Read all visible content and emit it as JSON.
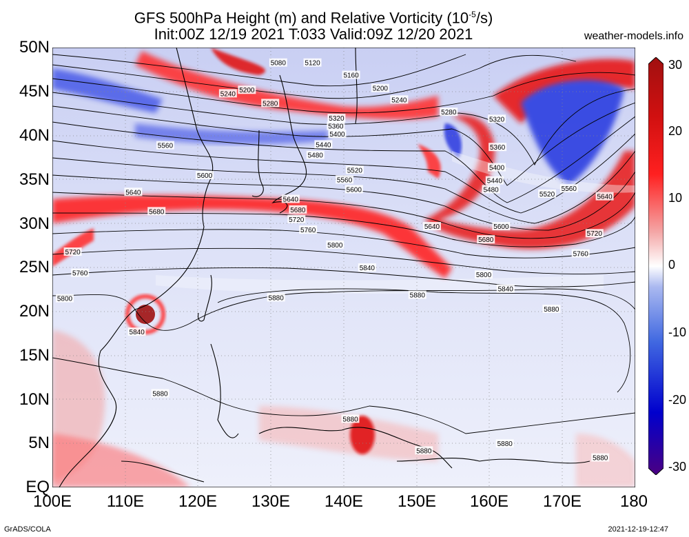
{
  "title_line1": "GFS 500hPa Height (m) and Relative Vorticity (10",
  "title_sup": "-5",
  "title_line1_end": "/s)",
  "title_line2": "Init:00Z 12/19 2021 T:033 Valid:09Z 12/20 2021",
  "site": "weather-models.info",
  "lat_labels": [
    "50N",
    "45N",
    "40N",
    "35N",
    "30N",
    "25N",
    "20N",
    "15N",
    "10N",
    "5N",
    "EQ"
  ],
  "lon_labels": [
    "100E",
    "110E",
    "120E",
    "130E",
    "140E",
    "150E",
    "160E",
    "170E",
    "180"
  ],
  "colorbar_labels": [
    "30",
    "20",
    "10",
    "0",
    "-10",
    "-20",
    "-30"
  ],
  "colorbar_colors": [
    "#4b0082",
    "#0000cd",
    "#4169e1",
    "#aab8f0",
    "#ffffff",
    "#f4a8a8",
    "#ff2020",
    "#d01010",
    "#a01010"
  ],
  "footer_left": "GrADS/COLA",
  "footer_right": "2021-12-19-12:47",
  "contour_labels": [
    {
      "text": "5080",
      "lon": 131.0,
      "lat": 48.3
    },
    {
      "text": "5120",
      "lon": 135.7,
      "lat": 48.3
    },
    {
      "text": "5160",
      "lon": 141.0,
      "lat": 46.9
    },
    {
      "text": "5200",
      "lon": 126.7,
      "lat": 45.2
    },
    {
      "text": "5240",
      "lon": 124.1,
      "lat": 44.8
    },
    {
      "text": "5200",
      "lon": 145.0,
      "lat": 45.4
    },
    {
      "text": "5240",
      "lon": 147.6,
      "lat": 44.1
    },
    {
      "text": "5280",
      "lon": 129.9,
      "lat": 43.7
    },
    {
      "text": "5280",
      "lon": 154.4,
      "lat": 42.7
    },
    {
      "text": "5320",
      "lon": 139.0,
      "lat": 42.0
    },
    {
      "text": "5320",
      "lon": 161.0,
      "lat": 41.9
    },
    {
      "text": "5360",
      "lon": 138.9,
      "lat": 41.1
    },
    {
      "text": "5400",
      "lon": 139.1,
      "lat": 40.2
    },
    {
      "text": "5440",
      "lon": 137.2,
      "lat": 39.0
    },
    {
      "text": "5480",
      "lon": 136.1,
      "lat": 37.8
    },
    {
      "text": "5360",
      "lon": 161.1,
      "lat": 38.7
    },
    {
      "text": "5560",
      "lon": 115.5,
      "lat": 38.9
    },
    {
      "text": "5520",
      "lon": 141.5,
      "lat": 36.1
    },
    {
      "text": "5400",
      "lon": 161.0,
      "lat": 36.4
    },
    {
      "text": "5600",
      "lon": 120.9,
      "lat": 35.5
    },
    {
      "text": "5560",
      "lon": 140.1,
      "lat": 35.0
    },
    {
      "text": "5440",
      "lon": 160.7,
      "lat": 34.9
    },
    {
      "text": "5600",
      "lon": 141.4,
      "lat": 33.9
    },
    {
      "text": "5480",
      "lon": 160.2,
      "lat": 33.9
    },
    {
      "text": "5560",
      "lon": 170.9,
      "lat": 34.0
    },
    {
      "text": "5640",
      "lon": 111.1,
      "lat": 33.6
    },
    {
      "text": "5520",
      "lon": 167.9,
      "lat": 33.4
    },
    {
      "text": "5640",
      "lon": 175.8,
      "lat": 33.1
    },
    {
      "text": "5640",
      "lon": 132.7,
      "lat": 32.8
    },
    {
      "text": "5680",
      "lon": 133.7,
      "lat": 31.6
    },
    {
      "text": "5680",
      "lon": 114.3,
      "lat": 31.4
    },
    {
      "text": "5720",
      "lon": 133.5,
      "lat": 30.5
    },
    {
      "text": "5600",
      "lon": 161.6,
      "lat": 29.7
    },
    {
      "text": "5640",
      "lon": 152.1,
      "lat": 29.7
    },
    {
      "text": "5760",
      "lon": 135.1,
      "lat": 29.3
    },
    {
      "text": "5720",
      "lon": 174.4,
      "lat": 28.9
    },
    {
      "text": "5680",
      "lon": 159.5,
      "lat": 28.2
    },
    {
      "text": "5800",
      "lon": 138.8,
      "lat": 27.6
    },
    {
      "text": "5720",
      "lon": 102.8,
      "lat": 26.8
    },
    {
      "text": "5760",
      "lon": 172.5,
      "lat": 26.6
    },
    {
      "text": "5840",
      "lon": 143.2,
      "lat": 25.0
    },
    {
      "text": "5760",
      "lon": 103.8,
      "lat": 24.4
    },
    {
      "text": "5800",
      "lon": 159.2,
      "lat": 24.2
    },
    {
      "text": "5840",
      "lon": 162.2,
      "lat": 22.6
    },
    {
      "text": "5880",
      "lon": 130.7,
      "lat": 21.6
    },
    {
      "text": "5880",
      "lon": 150.1,
      "lat": 21.9
    },
    {
      "text": "5800",
      "lon": 101.7,
      "lat": 21.5
    },
    {
      "text": "5880",
      "lon": 168.5,
      "lat": 20.3
    },
    {
      "text": "5840",
      "lon": 111.6,
      "lat": 17.7
    },
    {
      "text": "5880",
      "lon": 114.8,
      "lat": 10.7
    },
    {
      "text": "5880",
      "lon": 140.9,
      "lat": 7.8
    },
    {
      "text": "5880",
      "lon": 162.1,
      "lat": 5.0
    },
    {
      "text": "5880",
      "lon": 151.0,
      "lat": 4.2
    },
    {
      "text": "5880",
      "lon": 175.2,
      "lat": 3.4
    }
  ]
}
